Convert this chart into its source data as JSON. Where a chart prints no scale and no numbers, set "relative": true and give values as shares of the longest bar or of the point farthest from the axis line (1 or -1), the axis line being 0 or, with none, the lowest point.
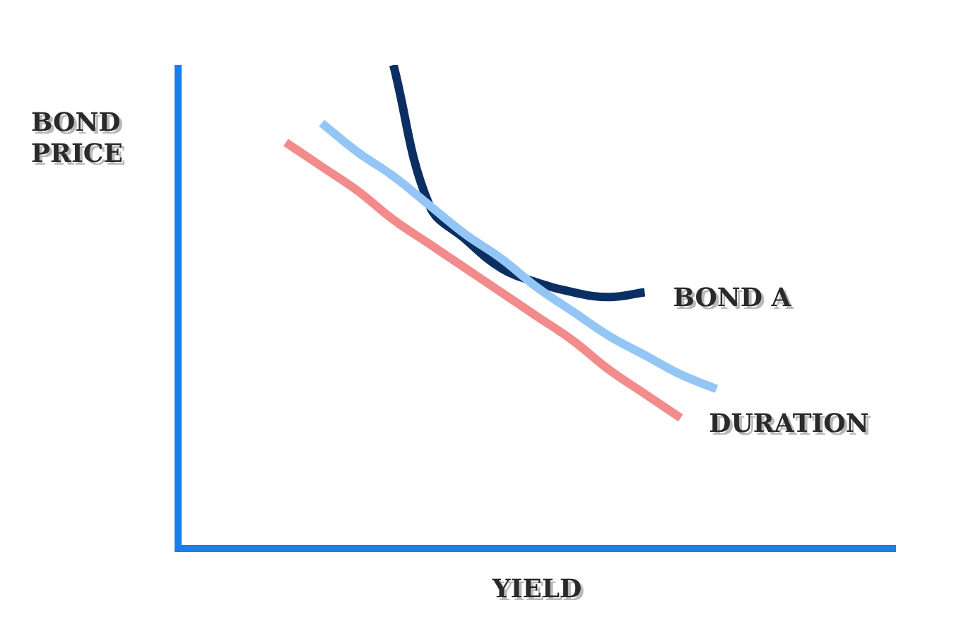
{
  "chart_data": {
    "type": "line",
    "relative": true,
    "xlabel": "YIELD",
    "ylabel": "BOND PRICE",
    "legend": false,
    "marker": "none",
    "line_style": "solid",
    "categories": [
      null,
      null,
      null,
      null,
      null,
      null,
      null,
      null,
      null,
      null,
      null,
      null,
      null,
      null,
      null,
      null,
      null,
      null,
      null,
      null,
      null
    ],
    "series": [
      {
        "name": "DURATION",
        "color": "#f28b8b",
        "values": [
          null,
          null,
          null,
          0.84,
          0.79,
          0.74,
          0.68,
          0.63,
          0.58,
          0.53,
          0.48,
          0.43,
          0.37,
          0.32,
          0.27,
          null,
          null,
          null,
          null,
          null,
          null
        ]
      },
      {
        "color": "#93c6f5",
        "values": [
          null,
          null,
          null,
          null,
          0.88,
          0.82,
          0.77,
          0.71,
          0.65,
          0.6,
          0.54,
          0.49,
          0.44,
          0.4,
          0.36,
          0.33,
          null,
          null,
          null,
          null,
          null
        ]
      },
      {
        "name": "BOND A",
        "color": "#0b2f63",
        "values": [
          null,
          null,
          null,
          null,
          null,
          null,
          1,
          0.71,
          0.64,
          0.58,
          0.55,
          0.53,
          0.52,
          0.53,
          null,
          null,
          null,
          null,
          null,
          null,
          null
        ]
      }
    ]
  }
}
